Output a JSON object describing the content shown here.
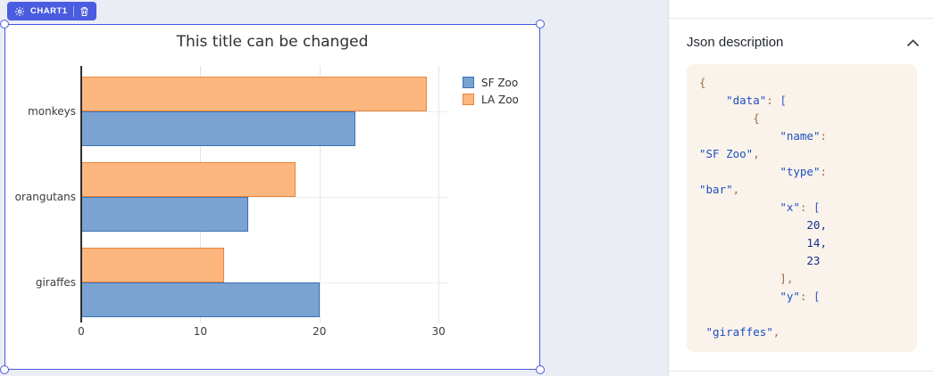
{
  "badge": {
    "label": "CHART1",
    "gear_icon": "gear-icon",
    "trash_icon": "trash-icon",
    "color": "#4a5ce0"
  },
  "selection": {
    "border_color": "#4759e2"
  },
  "chart_data": {
    "type": "bar",
    "orientation": "horizontal",
    "title": "This title can be changed",
    "categories": [
      "monkeys",
      "orangutans",
      "giraffes"
    ],
    "series": [
      {
        "name": "SF Zoo",
        "values": [
          23,
          14,
          20
        ],
        "fill": "#7ba3d2",
        "border": "#3a72b5"
      },
      {
        "name": "LA Zoo",
        "values": [
          29,
          18,
          12
        ],
        "fill": "#fdb67e",
        "border": "#e8853d"
      }
    ],
    "x_ticks": [
      0,
      10,
      20,
      30
    ],
    "xlim": [
      0,
      30.8
    ],
    "grid": true,
    "legend_position": "top-right"
  },
  "json_panel": {
    "title": "Json description",
    "collapse_icon": "chevron-up-icon",
    "code_lines": [
      [
        [
          "p",
          "{"
        ]
      ],
      [
        [
          "p",
          "    "
        ],
        [
          "k",
          "\"data\""
        ],
        [
          "p",
          ": "
        ],
        [
          "b",
          "["
        ]
      ],
      [
        [
          "p",
          "        {"
        ]
      ],
      [
        [
          "p",
          "            "
        ],
        [
          "k",
          "\"name\""
        ],
        [
          "p",
          ":"
        ]
      ],
      [
        [
          "s",
          "\"SF Zoo\""
        ],
        [
          "p",
          ","
        ]
      ],
      [
        [
          "p",
          "            "
        ],
        [
          "k",
          "\"type\""
        ],
        [
          "p",
          ":"
        ]
      ],
      [
        [
          "s",
          "\"bar\""
        ],
        [
          "p",
          ","
        ]
      ],
      [
        [
          "p",
          "            "
        ],
        [
          "k",
          "\"x\""
        ],
        [
          "p",
          ": "
        ],
        [
          "b",
          "["
        ]
      ],
      [
        [
          "n",
          "                20,"
        ]
      ],
      [
        [
          "n",
          "                14,"
        ]
      ],
      [
        [
          "n",
          "                23"
        ]
      ],
      [
        [
          "p",
          "            ],"
        ]
      ],
      [
        [
          "p",
          "            "
        ],
        [
          "k",
          "\"y\""
        ],
        [
          "p",
          ": "
        ],
        [
          "b",
          "["
        ]
      ],
      [],
      [
        [
          "p",
          " "
        ],
        [
          "s",
          "\"giraffes\""
        ],
        [
          "p",
          ","
        ]
      ]
    ]
  }
}
